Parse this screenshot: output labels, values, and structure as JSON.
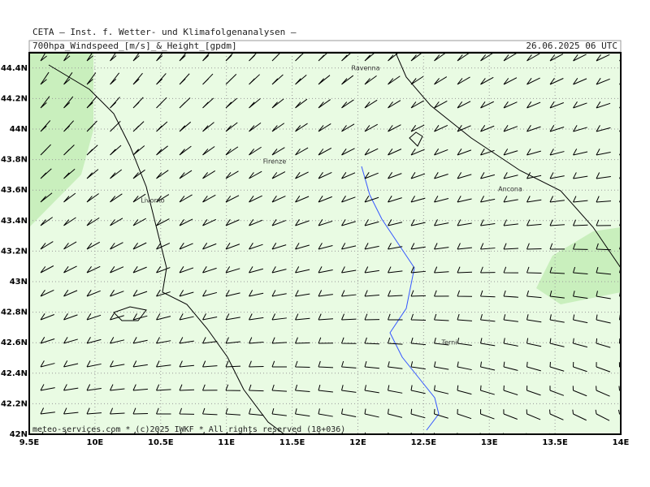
{
  "header": {
    "source": "CETA – Inst. f. Wetter- und Klimafolgenanalysen –",
    "title": "700hpa_Windspeed_[m/s]_&_Height_[gpdm]",
    "date": "26.06.2025 06 UTC"
  },
  "map": {
    "xlim": [
      9.5,
      14
    ],
    "ylim": [
      42,
      44.5
    ],
    "xticks": [
      {
        "value": 9.5,
        "label": "9.5E"
      },
      {
        "value": 10,
        "label": "10E"
      },
      {
        "value": 10.5,
        "label": "10.5E"
      },
      {
        "value": 11,
        "label": "11E"
      },
      {
        "value": 11.5,
        "label": "11.5E"
      },
      {
        "value": 12,
        "label": "12E"
      },
      {
        "value": 12.5,
        "label": "12.5E"
      },
      {
        "value": 13,
        "label": "13E"
      },
      {
        "value": 13.5,
        "label": "13.5E"
      },
      {
        "value": 14,
        "label": "14E"
      }
    ],
    "yticks": [
      {
        "value": 42,
        "label": "42N"
      },
      {
        "value": 42.2,
        "label": "42.2N"
      },
      {
        "value": 42.4,
        "label": "42.4N"
      },
      {
        "value": 42.6,
        "label": "42.6N"
      },
      {
        "value": 42.8,
        "label": "42.8N"
      },
      {
        "value": 43,
        "label": "43N"
      },
      {
        "value": 43.2,
        "label": "43.2N"
      },
      {
        "value": 43.4,
        "label": "43.4N"
      },
      {
        "value": 43.6,
        "label": "43.6N"
      },
      {
        "value": 43.8,
        "label": "43.8N"
      },
      {
        "value": 44,
        "label": "44N"
      },
      {
        "value": 44.2,
        "label": "44.2N"
      },
      {
        "value": 44.4,
        "label": "44.4N"
      }
    ],
    "cities": [
      "Ravenna",
      "Firenze",
      "Livorno",
      "Ancona",
      "Terni"
    ],
    "footer": "meteo-services.com * (c)2025 IWKF * All rights reserved (18+036)"
  }
}
